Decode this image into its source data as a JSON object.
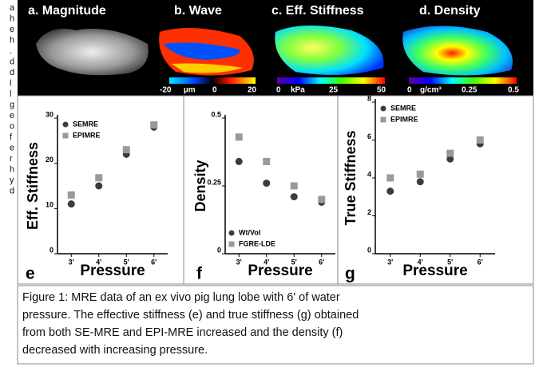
{
  "margin_fragments": [
    "a",
    "h",
    "e",
    "h",
    ".",
    "d",
    "d",
    "l",
    "l",
    "g",
    "e",
    "o",
    "f",
    "e",
    "r",
    "h",
    "y",
    "d"
  ],
  "figure": {
    "panels": [
      {
        "title": "a. Magnitude"
      },
      {
        "title": "b. Wave",
        "colorbar_labels": [
          "-20",
          "µm",
          "0",
          "20"
        ]
      },
      {
        "title": "c. Eff. Stiffness",
        "colorbar_labels": [
          "0",
          "kPa",
          "25",
          "50"
        ]
      },
      {
        "title": "d. Density",
        "colorbar_labels": [
          "0",
          "g/cm³",
          "0.25",
          "0.5"
        ]
      }
    ],
    "caption": [
      "Figure 1: MRE data of an ex vivo pig lung lobe with 6' of water",
      "pressure. The effective stiffness (e) and true stiffness (g) obtained",
      "from both SE-MRE and EPI-MRE increased and the density (f)",
      "decreased with increasing pressure."
    ]
  },
  "chart_data": [
    {
      "type": "scatter",
      "panel_label": "e",
      "ylabel": "Eff. Stiffness",
      "xlabel": "Pressure",
      "categories": [
        "3'",
        "4'",
        "5'",
        "6'"
      ],
      "ylim": [
        0,
        30
      ],
      "yticks": [
        0,
        10,
        20,
        30
      ],
      "legend": "top-left",
      "series": [
        {
          "name": "SEMRE",
          "color": "#3c3c3c",
          "marker": "circle",
          "values": [
            11,
            15,
            22,
            28
          ]
        },
        {
          "name": "EPIMRE",
          "color": "#9a9a9a",
          "marker": "square",
          "values": [
            13,
            16.8,
            23,
            28.5
          ]
        }
      ]
    },
    {
      "type": "scatter",
      "panel_label": "f",
      "ylabel": "Density",
      "xlabel": "Pressure",
      "categories": [
        "3'",
        "4'",
        "5'",
        "6'"
      ],
      "ylim": [
        0,
        0.5
      ],
      "yticks": [
        0,
        0.25,
        0.5
      ],
      "legend": "bottom-left",
      "series": [
        {
          "name": "Wt/Vol",
          "color": "#3c3c3c",
          "marker": "circle",
          "values": [
            0.34,
            0.26,
            0.21,
            0.19
          ]
        },
        {
          "name": "FGRE-LDE",
          "color": "#9a9a9a",
          "marker": "square",
          "values": [
            0.43,
            0.34,
            0.25,
            0.2
          ]
        }
      ]
    },
    {
      "type": "scatter",
      "panel_label": "g",
      "ylabel": "True Stiffness",
      "xlabel": "Pressure",
      "categories": [
        "3'",
        "4'",
        "5'",
        "6'"
      ],
      "ylim": [
        0,
        8
      ],
      "yticks": [
        0,
        2,
        4,
        6,
        8
      ],
      "legend": "top-left",
      "series": [
        {
          "name": "SEMRE",
          "color": "#3c3c3c",
          "marker": "circle",
          "values": [
            3.3,
            3.8,
            5,
            5.8
          ]
        },
        {
          "name": "EPIMRE",
          "color": "#9a9a9a",
          "marker": "square",
          "values": [
            4,
            4.2,
            5.3,
            6
          ]
        }
      ]
    }
  ]
}
